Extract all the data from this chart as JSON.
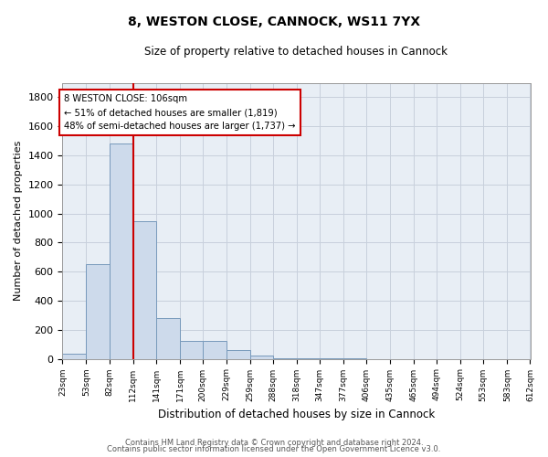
{
  "title": "8, WESTON CLOSE, CANNOCK, WS11 7YX",
  "subtitle": "Size of property relative to detached houses in Cannock",
  "xlabel": "Distribution of detached houses by size in Cannock",
  "ylabel": "Number of detached properties",
  "annotation_title": "8 WESTON CLOSE: 106sqm",
  "annotation_line1": "← 51% of detached houses are smaller (1,819)",
  "annotation_line2": "48% of semi-detached houses are larger (1,737) →",
  "footer1": "Contains HM Land Registry data © Crown copyright and database right 2024.",
  "footer2": "Contains public sector information licensed under the Open Government Licence v3.0.",
  "bar_edges": [
    23,
    53,
    82,
    112,
    141,
    171,
    200,
    229,
    259,
    288,
    318,
    347,
    377,
    406,
    435,
    465,
    494,
    524,
    553,
    583,
    612
  ],
  "bar_heights": [
    35,
    650,
    1480,
    950,
    280,
    120,
    120,
    60,
    20,
    5,
    5,
    5,
    5,
    0,
    0,
    0,
    0,
    0,
    0,
    0
  ],
  "bar_color": "#cddaeb",
  "bar_edge_color": "#7799bb",
  "property_line_x": 112,
  "ylim": [
    0,
    1900
  ],
  "yticks": [
    0,
    200,
    400,
    600,
    800,
    1000,
    1200,
    1400,
    1600,
    1800
  ],
  "annotation_box_color": "#ffffff",
  "annotation_box_edge": "#cc0000",
  "vline_color": "#cc0000",
  "grid_color": "#c8d0dc",
  "background_color": "#e8eef5"
}
